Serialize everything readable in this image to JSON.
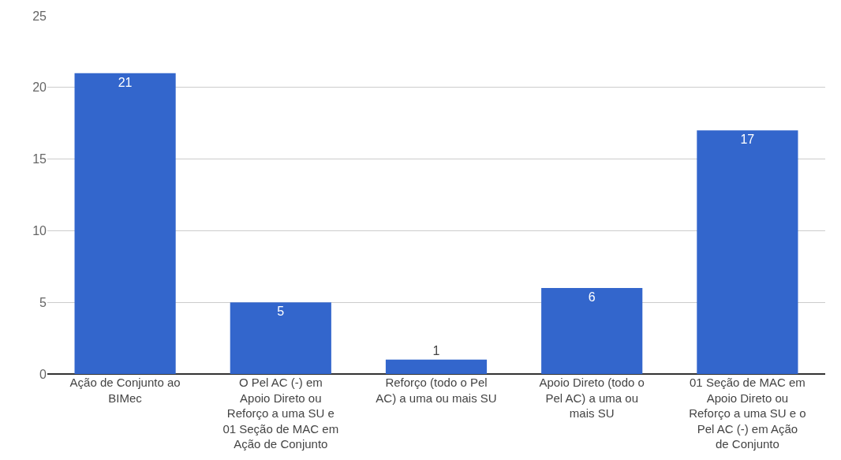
{
  "chart_data": {
    "type": "bar",
    "categories": [
      "Ação de Conjunto ao BIMec",
      "O Pel AC (-) em Apoio Direto ou Reforço a uma SU e 01 Seção de MAC em Ação de Conjunto",
      "Reforço (todo o Pel AC) a uma ou mais SU",
      "Apoio Direto (todo o Pel AC) a uma ou mais SU",
      "01 Seção de MAC em Apoio Direto ou Reforço a uma SU e o Pel AC (-) em Ação de Conjunto"
    ],
    "values": [
      21,
      5,
      1,
      6,
      17
    ],
    "color": "#3366cc",
    "ylim": [
      0,
      25
    ],
    "yticks": [
      0,
      5,
      10,
      15,
      20,
      25
    ],
    "grid": "y",
    "data_labels": true
  }
}
